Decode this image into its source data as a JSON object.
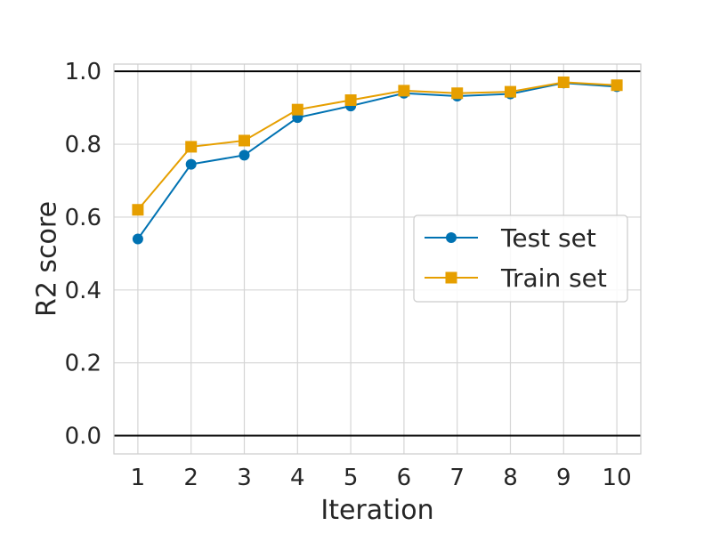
{
  "chart_data": {
    "type": "line",
    "xlabel": "Iteration",
    "ylabel": "R2 score",
    "x": [
      1,
      2,
      3,
      4,
      5,
      6,
      7,
      8,
      9,
      10
    ],
    "xlim": [
      0.55,
      10.45
    ],
    "ylim": [
      -0.05,
      1.02
    ],
    "yticks": [
      "0.0",
      "0.2",
      "0.4",
      "0.6",
      "0.8",
      "1.0"
    ],
    "xticks": [
      "1",
      "2",
      "3",
      "4",
      "5",
      "6",
      "7",
      "8",
      "9",
      "10"
    ],
    "reference_lines": [
      0.0,
      1.0
    ],
    "grid": true,
    "legend_position": "center-right",
    "series": [
      {
        "name": "Test set",
        "color": "#0072B2",
        "marker": "circle",
        "values": [
          0.54,
          0.745,
          0.77,
          0.873,
          0.905,
          0.94,
          0.932,
          0.938,
          0.968,
          0.958
        ]
      },
      {
        "name": "Train set",
        "color": "#E69F00",
        "marker": "square",
        "values": [
          0.62,
          0.793,
          0.81,
          0.895,
          0.921,
          0.947,
          0.94,
          0.944,
          0.97,
          0.962
        ]
      }
    ]
  }
}
